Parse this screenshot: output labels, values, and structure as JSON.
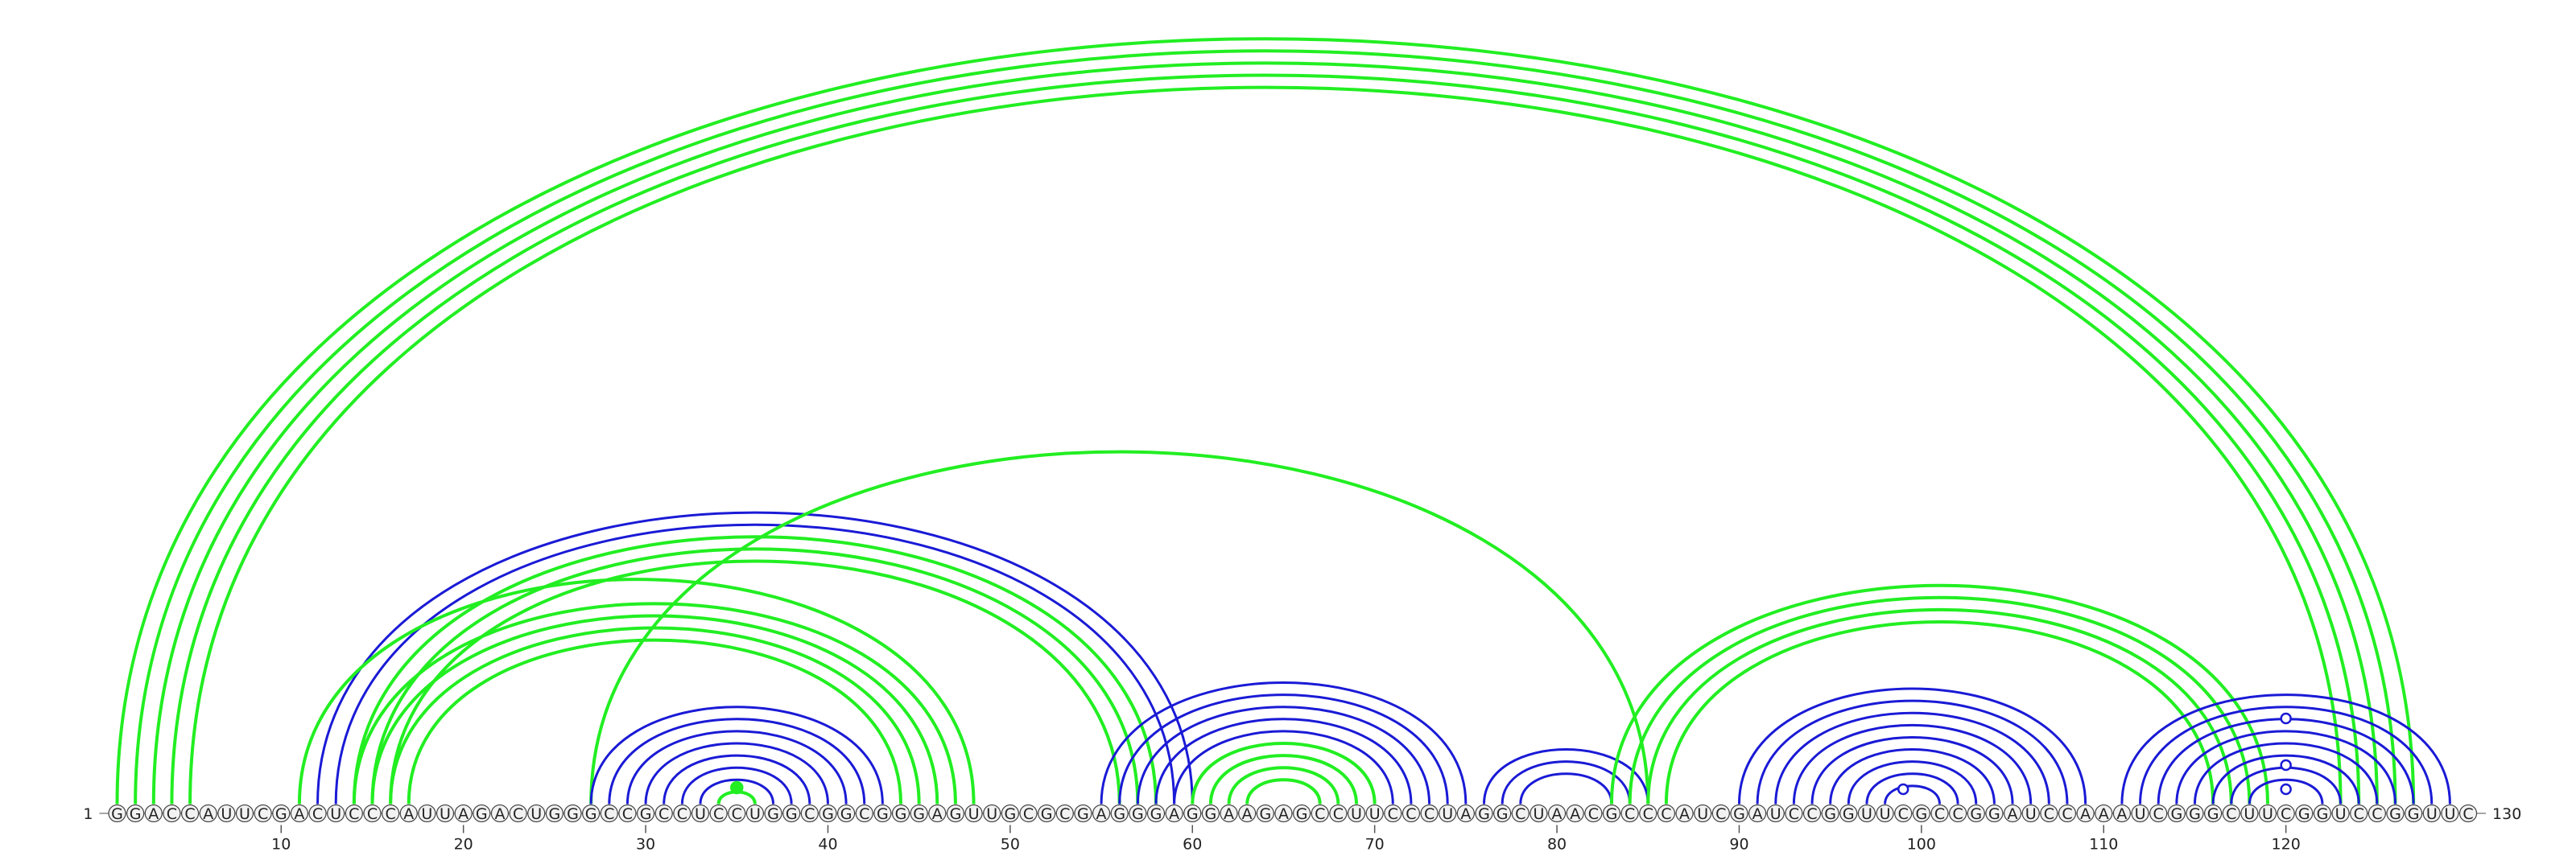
{
  "sequence": "GGACCAUUCGACUCCCAUUAGACUGGGCCGCCUCCUGGCGGCGGGAGUUGCGCGAGGGAGGAAGAGCCUUCCCUAGGCUAACGCCCAUCGAUCCGGUUCGCCGGAUCCAAAUCGGGCUUCGGUCCGGUUC",
  "length_label_start": "1",
  "length_label_end": "130",
  "ticks": [
    {
      "pos": 10,
      "label": "10"
    },
    {
      "pos": 20,
      "label": "20"
    },
    {
      "pos": 30,
      "label": "30"
    },
    {
      "pos": 40,
      "label": "40"
    },
    {
      "pos": 50,
      "label": "50"
    },
    {
      "pos": 60,
      "label": "60"
    },
    {
      "pos": 70,
      "label": "70"
    },
    {
      "pos": 80,
      "label": "80"
    },
    {
      "pos": 90,
      "label": "90"
    },
    {
      "pos": 100,
      "label": "100"
    },
    {
      "pos": 110,
      "label": "110"
    },
    {
      "pos": 120,
      "label": "120"
    }
  ],
  "colors": {
    "green": "#22ee22",
    "blue": "#1a1ad6",
    "backbone": "#888888",
    "nt_fill": "#f2f2f2",
    "nt_stroke": "#444444"
  },
  "arcs": [
    {
      "i": 1,
      "j": 127,
      "color": "green"
    },
    {
      "i": 2,
      "j": 126,
      "color": "green"
    },
    {
      "i": 3,
      "j": 125,
      "color": "green"
    },
    {
      "i": 4,
      "j": 124,
      "color": "green"
    },
    {
      "i": 5,
      "j": 123,
      "color": "green"
    },
    {
      "i": 12,
      "j": 60,
      "color": "blue"
    },
    {
      "i": 13,
      "j": 59,
      "color": "blue"
    },
    {
      "i": 11,
      "j": 48,
      "color": "green"
    },
    {
      "i": 14,
      "j": 47,
      "color": "green"
    },
    {
      "i": 15,
      "j": 46,
      "color": "green"
    },
    {
      "i": 16,
      "j": 45,
      "color": "green"
    },
    {
      "i": 17,
      "j": 44,
      "color": "green"
    },
    {
      "i": 14,
      "j": 58,
      "color": "green"
    },
    {
      "i": 15,
      "j": 57,
      "color": "green"
    },
    {
      "i": 16,
      "j": 56,
      "color": "green"
    },
    {
      "i": 27,
      "j": 85,
      "color": "green"
    },
    {
      "i": 27,
      "j": 43,
      "color": "blue"
    },
    {
      "i": 28,
      "j": 42,
      "color": "blue"
    },
    {
      "i": 29,
      "j": 41,
      "color": "blue"
    },
    {
      "i": 30,
      "j": 40,
      "color": "blue"
    },
    {
      "i": 31,
      "j": 39,
      "color": "blue"
    },
    {
      "i": 32,
      "j": 38,
      "color": "blue"
    },
    {
      "i": 33,
      "j": 37,
      "color": "blue"
    },
    {
      "i": 34,
      "j": 36,
      "color": "green"
    },
    {
      "i": 55,
      "j": 75,
      "color": "blue"
    },
    {
      "i": 56,
      "j": 74,
      "color": "blue"
    },
    {
      "i": 57,
      "j": 73,
      "color": "blue"
    },
    {
      "i": 58,
      "j": 72,
      "color": "blue"
    },
    {
      "i": 59,
      "j": 71,
      "color": "blue"
    },
    {
      "i": 60,
      "j": 70,
      "color": "green"
    },
    {
      "i": 61,
      "j": 69,
      "color": "green"
    },
    {
      "i": 62,
      "j": 68,
      "color": "green"
    },
    {
      "i": 63,
      "j": 67,
      "color": "green"
    },
    {
      "i": 76,
      "j": 85,
      "color": "blue"
    },
    {
      "i": 77,
      "j": 84,
      "color": "blue"
    },
    {
      "i": 78,
      "j": 83,
      "color": "blue"
    },
    {
      "i": 83,
      "j": 119,
      "color": "green"
    },
    {
      "i": 84,
      "j": 118,
      "color": "green"
    },
    {
      "i": 85,
      "j": 117,
      "color": "green"
    },
    {
      "i": 86,
      "j": 116,
      "color": "green"
    },
    {
      "i": 90,
      "j": 109,
      "color": "blue"
    },
    {
      "i": 91,
      "j": 108,
      "color": "blue"
    },
    {
      "i": 92,
      "j": 107,
      "color": "blue"
    },
    {
      "i": 93,
      "j": 106,
      "color": "blue"
    },
    {
      "i": 94,
      "j": 105,
      "color": "blue"
    },
    {
      "i": 95,
      "j": 104,
      "color": "blue"
    },
    {
      "i": 96,
      "j": 103,
      "color": "blue"
    },
    {
      "i": 97,
      "j": 102,
      "color": "blue"
    },
    {
      "i": 98,
      "j": 101,
      "color": "blue"
    },
    {
      "i": 111,
      "j": 129,
      "color": "blue"
    },
    {
      "i": 112,
      "j": 128,
      "color": "blue"
    },
    {
      "i": 113,
      "j": 127,
      "color": "blue"
    },
    {
      "i": 114,
      "j": 126,
      "color": "blue"
    },
    {
      "i": 115,
      "j": 125,
      "color": "blue"
    },
    {
      "i": 116,
      "j": 124,
      "color": "blue"
    },
    {
      "i": 117,
      "j": 123,
      "color": "blue"
    },
    {
      "i": 118,
      "j": 122,
      "color": "blue"
    }
  ],
  "markers": [
    {
      "pos": 35,
      "color": "green",
      "filled": true
    },
    {
      "pos": 99,
      "color": "blue",
      "filled": false
    },
    {
      "pos": 120,
      "color": "blue",
      "filled": false
    },
    {
      "pos": 120,
      "color": "blue",
      "filled": false,
      "level": 1
    },
    {
      "pos": 120,
      "color": "blue",
      "filled": false,
      "level": 2
    }
  ]
}
